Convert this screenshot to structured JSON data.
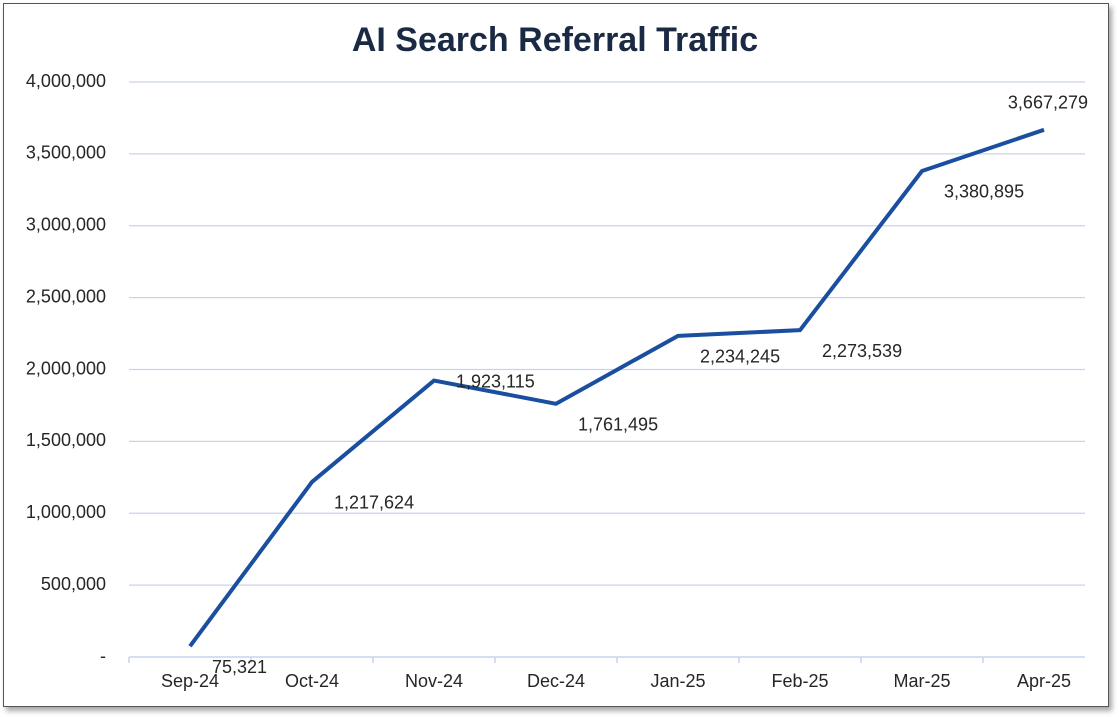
{
  "chart_data": {
    "type": "line",
    "title": "AI Search Referral Traffic",
    "categories": [
      "Sep-24",
      "Oct-24",
      "Nov-24",
      "Dec-24",
      "Jan-25",
      "Feb-25",
      "Mar-25",
      "Apr-25"
    ],
    "series": [
      {
        "color": "#1a4f9f",
        "values": [
          75321,
          1217624,
          1923115,
          1761495,
          2234245,
          2273539,
          3380895,
          3667279
        ],
        "value_labels": [
          "75,321",
          "1,217,624",
          "1,923,115",
          "1,761,495",
          "2,234,245",
          "2,273,539",
          "3,380,895",
          "3,667,279"
        ]
      }
    ],
    "ylim": [
      0,
      4000000
    ],
    "yticks": [
      {
        "value": 0,
        "label": "-"
      },
      {
        "value": 500000,
        "label": "500,000"
      },
      {
        "value": 1000000,
        "label": "1,000,000"
      },
      {
        "value": 1500000,
        "label": "1,500,000"
      },
      {
        "value": 2000000,
        "label": "2,000,000"
      },
      {
        "value": 2500000,
        "label": "2,500,000"
      },
      {
        "value": 3000000,
        "label": "3,000,000"
      },
      {
        "value": 3500000,
        "label": "3,500,000"
      },
      {
        "value": 4000000,
        "label": "4,000,000"
      }
    ],
    "grid": true
  }
}
